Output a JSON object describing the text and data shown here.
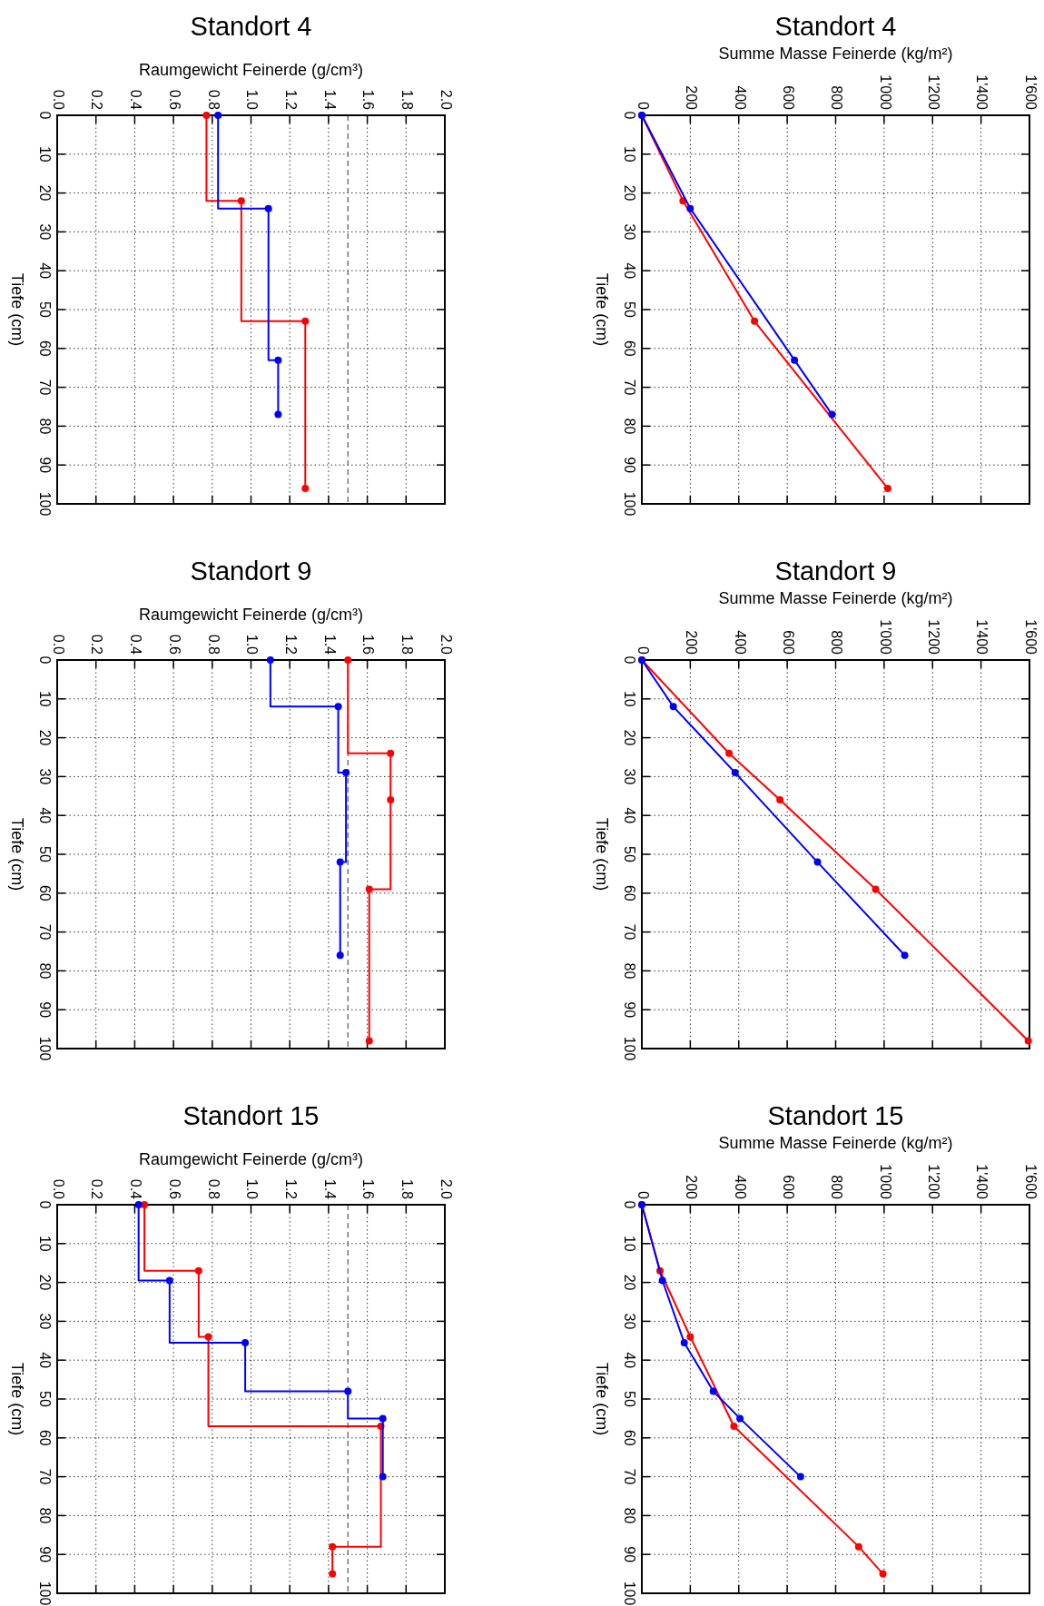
{
  "chart_data": [
    {
      "type": "step",
      "title": "Standort 4",
      "xlabel": "Raumgewicht Feinerde (g/cm³)",
      "ylabel": "Tiefe (cm)",
      "xlim": [
        0,
        2
      ],
      "xticks": [
        {
          "value": 0,
          "label": "0.0"
        },
        0.2,
        0.4,
        0.6,
        0.8,
        {
          "value": 1,
          "label": "1.0"
        },
        1.2,
        1.4,
        1.6,
        1.8,
        {
          "value": 2,
          "label": "2.0"
        }
      ],
      "ylim": [
        100,
        0
      ],
      "yticks": [
        0,
        10,
        20,
        30,
        40,
        50,
        60,
        70,
        80,
        90,
        100
      ],
      "grid": true,
      "marker": "circle",
      "line_style": "solid",
      "ref_lines": [
        {
          "axis": "x",
          "value": 1.5,
          "color": "#555555",
          "line_style": "dashed"
        }
      ],
      "series": [
        {
          "color": "#ff0000",
          "x": [
            0.77,
            0.95,
            1.28,
            1.28
          ],
          "values": [
            0,
            22,
            53,
            96
          ]
        },
        {
          "color": "#0000ff",
          "x": [
            0.83,
            1.09,
            1.14,
            1.14
          ],
          "values": [
            0,
            24,
            63,
            77
          ]
        }
      ]
    },
    {
      "type": "line",
      "title": "Standort 4",
      "xlabel": "Summe Masse Feinerde (kg/m²)",
      "ylabel": "Tiefe (cm)",
      "xlim": [
        0,
        1600
      ],
      "xticks": [
        0,
        200,
        400,
        600,
        800,
        {
          "value": 1000,
          "label": "1'000"
        },
        {
          "value": 1200,
          "label": "1'200"
        },
        {
          "value": 1400,
          "label": "1'400"
        },
        {
          "value": 1600,
          "label": "1'600"
        }
      ],
      "ylim": [
        100,
        0
      ],
      "yticks": [
        0,
        10,
        20,
        30,
        40,
        50,
        60,
        70,
        80,
        90,
        100
      ],
      "grid": true,
      "marker": "circle",
      "line_style": "solid",
      "series": [
        {
          "color": "#ff0000",
          "x": [
            0,
            170,
            465,
            1015
          ],
          "values": [
            0,
            22,
            53,
            96
          ]
        },
        {
          "color": "#0000ff",
          "x": [
            0,
            200,
            630,
            785
          ],
          "values": [
            0,
            24,
            63,
            77
          ]
        }
      ]
    },
    {
      "type": "step",
      "title": "Standort 9",
      "xlabel": "Raumgewicht Feinerde (g/cm³)",
      "ylabel": "Tiefe (cm)",
      "xlim": [
        0,
        2
      ],
      "xticks": [
        {
          "value": 0,
          "label": "0.0"
        },
        0.2,
        0.4,
        0.6,
        0.8,
        {
          "value": 1,
          "label": "1.0"
        },
        1.2,
        1.4,
        1.6,
        1.8,
        {
          "value": 2,
          "label": "2.0"
        }
      ],
      "ylim": [
        100,
        0
      ],
      "yticks": [
        0,
        10,
        20,
        30,
        40,
        50,
        60,
        70,
        80,
        90,
        100
      ],
      "grid": true,
      "marker": "circle",
      "line_style": "solid",
      "ref_lines": [
        {
          "axis": "x",
          "value": 1.5,
          "color": "#555555",
          "line_style": "dashed"
        }
      ],
      "series": [
        {
          "color": "#ff0000",
          "x": [
            1.5,
            1.72,
            1.72,
            1.61,
            1.61
          ],
          "values": [
            0,
            24,
            36,
            59,
            98
          ]
        },
        {
          "color": "#0000ff",
          "x": [
            1.1,
            1.45,
            1.49,
            1.46,
            1.46
          ],
          "values": [
            0,
            12,
            29,
            52,
            76
          ]
        }
      ]
    },
    {
      "type": "line",
      "title": "Standort 9",
      "xlabel": "Summe Masse Feinerde (kg/m²)",
      "ylabel": "Tiefe (cm)",
      "xlim": [
        0,
        1600
      ],
      "xticks": [
        0,
        200,
        400,
        600,
        800,
        {
          "value": 1000,
          "label": "1'000"
        },
        {
          "value": 1200,
          "label": "1'200"
        },
        {
          "value": 1400,
          "label": "1'400"
        },
        {
          "value": 1600,
          "label": "1'600"
        }
      ],
      "ylim": [
        100,
        0
      ],
      "yticks": [
        0,
        10,
        20,
        30,
        40,
        50,
        60,
        70,
        80,
        90,
        100
      ],
      "grid": true,
      "marker": "circle",
      "line_style": "solid",
      "series": [
        {
          "color": "#ff0000",
          "x": [
            0,
            360,
            570,
            965,
            1595
          ],
          "values": [
            0,
            24,
            36,
            59,
            98
          ]
        },
        {
          "color": "#0000ff",
          "x": [
            0,
            130,
            385,
            725,
            1085
          ],
          "values": [
            0,
            12,
            29,
            52,
            76
          ]
        }
      ]
    },
    {
      "type": "step",
      "title": "Standort 15",
      "xlabel": "Raumgewicht Feinerde (g/cm³)",
      "ylabel": "Tiefe (cm)",
      "xlim": [
        0,
        2
      ],
      "xticks": [
        {
          "value": 0,
          "label": "0.0"
        },
        0.2,
        0.4,
        0.6,
        0.8,
        {
          "value": 1,
          "label": "1.0"
        },
        1.2,
        1.4,
        1.6,
        1.8,
        {
          "value": 2,
          "label": "2.0"
        }
      ],
      "ylim": [
        100,
        0
      ],
      "yticks": [
        0,
        10,
        20,
        30,
        40,
        50,
        60,
        70,
        80,
        90,
        100
      ],
      "grid": true,
      "marker": "circle",
      "line_style": "solid",
      "ref_lines": [
        {
          "axis": "x",
          "value": 1.5,
          "color": "#555555",
          "line_style": "dashed"
        }
      ],
      "series": [
        {
          "color": "#ff0000",
          "x": [
            0.45,
            0.73,
            0.78,
            1.67,
            1.42,
            1.42
          ],
          "values": [
            0,
            17,
            34,
            57,
            88,
            95
          ]
        },
        {
          "color": "#0000ff",
          "x": [
            0.42,
            0.58,
            0.97,
            1.5,
            1.68,
            1.68
          ],
          "values": [
            0,
            19.5,
            35.5,
            48,
            55,
            70
          ]
        }
      ]
    },
    {
      "type": "line",
      "title": "Standort 15",
      "xlabel": "Summe Masse Feinerde (kg/m²)",
      "ylabel": "Tiefe (cm)",
      "xlim": [
        0,
        1600
      ],
      "xticks": [
        0,
        200,
        400,
        600,
        800,
        {
          "value": 1000,
          "label": "1'000"
        },
        {
          "value": 1200,
          "label": "1'200"
        },
        {
          "value": 1400,
          "label": "1'400"
        },
        {
          "value": 1600,
          "label": "1'600"
        }
      ],
      "ylim": [
        100,
        0
      ],
      "yticks": [
        0,
        10,
        20,
        30,
        40,
        50,
        60,
        70,
        80,
        90,
        100
      ],
      "grid": true,
      "marker": "circle",
      "line_style": "solid",
      "series": [
        {
          "color": "#ff0000",
          "x": [
            0,
            75,
            200,
            380,
            895,
            995
          ],
          "values": [
            0,
            17,
            34,
            57,
            88,
            95
          ]
        },
        {
          "color": "#0000ff",
          "x": [
            0,
            85,
            175,
            295,
            405,
            655
          ],
          "values": [
            0,
            19.5,
            35.5,
            48,
            55,
            70
          ]
        }
      ]
    }
  ]
}
